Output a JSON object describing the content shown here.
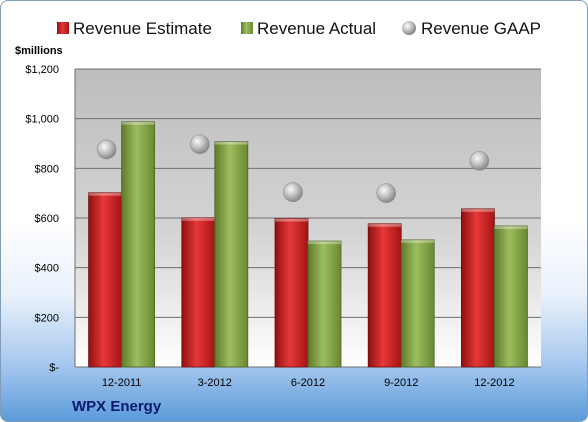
{
  "company": "WPX Energy",
  "colors": {
    "estimate": "#d42a2a",
    "actual": "#8aab4e",
    "gaap": "#bdbdbd"
  },
  "chart_data": {
    "type": "bar",
    "categories": [
      "12-2011",
      "3-2012",
      "6-2012",
      "9-2012",
      "12-2012"
    ],
    "ylabel": "$millions",
    "ylim": [
      0,
      1200
    ],
    "yticks": [
      {
        "value": 0,
        "label": "$-"
      },
      {
        "value": 200,
        "label": "$200"
      },
      {
        "value": 400,
        "label": "$400"
      },
      {
        "value": 600,
        "label": "$600"
      },
      {
        "value": 800,
        "label": "$800"
      },
      {
        "value": 1000,
        "label": "$1,000"
      },
      {
        "value": 1200,
        "label": "$1,200"
      }
    ],
    "grid": true,
    "legend_position": "top",
    "series": [
      {
        "name": "Revenue Estimate",
        "type": "bar",
        "values": [
          702,
          601,
          598,
          577,
          637
        ]
      },
      {
        "name": "Revenue Actual",
        "type": "bar",
        "values": [
          988,
          908,
          507,
          512,
          568
        ]
      },
      {
        "name": "Revenue GAAP",
        "type": "scatter",
        "values": [
          876,
          897,
          704,
          700,
          830
        ]
      }
    ]
  }
}
